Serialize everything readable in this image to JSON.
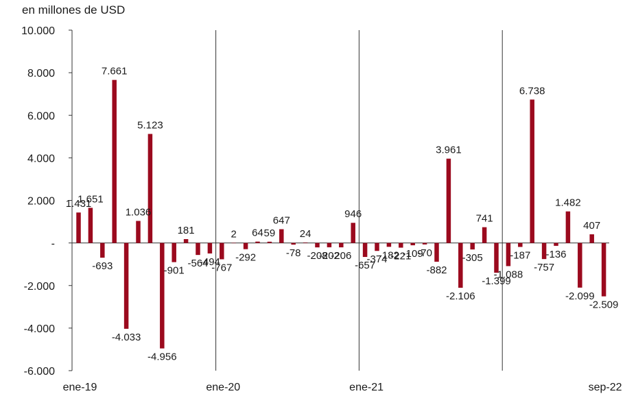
{
  "chart_data": {
    "type": "bar",
    "unit_label": "en millones de USD",
    "x_tick_labels": [
      {
        "index": 0,
        "label": "ene-19"
      },
      {
        "index": 12,
        "label": "ene-20"
      },
      {
        "index": 24,
        "label": "ene-21"
      },
      {
        "index": 44,
        "label": "sep-22"
      }
    ],
    "y_tick_labels": [
      "10.000",
      "8.000",
      "6.000",
      "4.000",
      "2.000",
      "-",
      "-2.000",
      "-4.000",
      "-6.000"
    ],
    "y_ticks": [
      10000,
      8000,
      6000,
      4000,
      2000,
      0,
      -2000,
      -4000,
      -6000
    ],
    "ylim": [
      -6000,
      10000
    ],
    "year_dividers_after_index": [
      11,
      23,
      35
    ],
    "bar_color": "#9b0a1e",
    "values": [
      1431,
      1651,
      -693,
      7661,
      -4033,
      1036,
      5123,
      -4956,
      -901,
      181,
      -564,
      -494,
      -767,
      2,
      -292,
      64,
      59,
      647,
      -78,
      24,
      -208,
      -202,
      -206,
      946,
      -657,
      -374,
      -182,
      -221,
      -109,
      -70,
      -882,
      3961,
      -2106,
      -305,
      741,
      -1399,
      -1088,
      -187,
      6738,
      -757,
      -136,
      1482,
      -2099,
      407,
      -2509
    ],
    "data_labels": [
      "1.431",
      "1.651",
      "-693",
      "7.661",
      "-4.033",
      "1.036",
      "5.123",
      "-4.956",
      "-901",
      "181",
      "-564",
      "-494",
      "-767",
      "2",
      "-292",
      "64",
      "59",
      "647",
      "-78",
      "24",
      "-208",
      "-202",
      "-206",
      "946",
      "-657",
      "-374",
      "-182",
      "-221",
      "-109",
      "-70",
      "-882",
      "3.961",
      "-2.106",
      "-305",
      "741",
      "-1.399",
      "-1.088",
      "-187",
      "6.738",
      "-757",
      "-136",
      "1.482",
      "-2.099",
      "407",
      "-2.509"
    ],
    "labeled_indices": [
      0,
      1,
      2,
      3,
      4,
      5,
      6,
      7,
      8,
      9,
      10,
      11,
      12,
      13,
      14,
      15,
      16,
      17,
      18,
      19,
      20,
      21,
      22,
      23,
      24,
      25,
      26,
      27,
      28,
      29,
      30,
      31,
      32,
      33,
      34,
      35,
      36,
      37,
      38,
      39,
      40,
      41,
      42,
      43,
      44
    ]
  }
}
